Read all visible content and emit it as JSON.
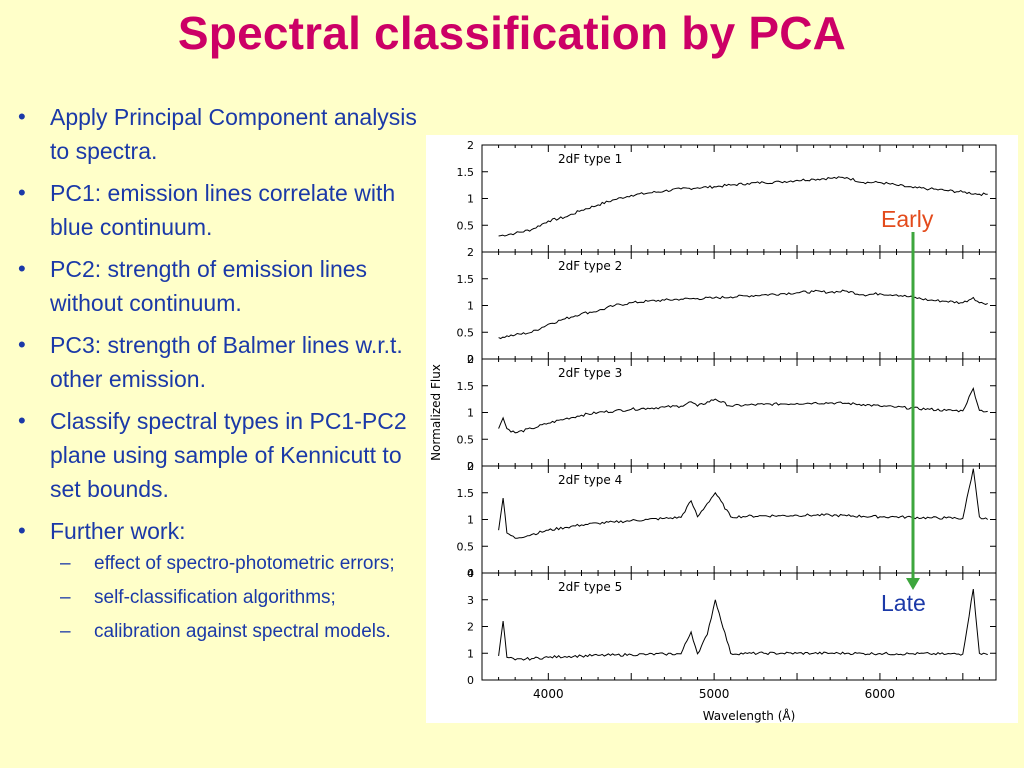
{
  "title": "Spectral classification by PCA",
  "bullets": [
    "Apply Principal Component analysis to spectra.",
    "PC1: emission lines correlate with blue continuum.",
    "PC2: strength of emission lines without continuum.",
    "PC3: strength of Balmer lines w.r.t. other emission.",
    "Classify spectral types in PC1-PC2 plane using sample of Kennicutt to set bounds.",
    "Further work:"
  ],
  "sub_bullets": [
    "effect of spectro-photometric errors;",
    "self-classification algorithms;",
    "calibration against   spectral models."
  ],
  "labels": {
    "early": "Early",
    "late": "Late"
  },
  "colors": {
    "title": "#CC0066",
    "text": "#1B39A8",
    "early": "#E34A1B",
    "arrow": "#3DA63D",
    "background": "#FFFFC9"
  },
  "chart_data": {
    "type": "line",
    "xlabel": "Wavelength (Å)",
    "ylabel": "Normalized Flux",
    "xlim": [
      3600,
      6700
    ],
    "x_ticks": [
      4000,
      5000,
      6000
    ],
    "panels": [
      {
        "name": "2dF type 1",
        "ylim": [
          0,
          2
        ],
        "y_ticks": [
          0,
          0.5,
          1,
          1.5,
          2
        ],
        "y_tick_labels": [
          "",
          "0.5",
          "1",
          "1.5",
          "2"
        ],
        "series": [
          {
            "x": [
              3700,
              3800,
              3900,
              4000,
              4100,
              4200,
              4300,
              4400,
              4500,
              4600,
              4700,
              4800,
              4900,
              5000,
              5100,
              5200,
              5300,
              5400,
              5500,
              5600,
              5700,
              5800,
              5900,
              6000,
              6100,
              6200,
              6300,
              6400,
              6500,
              6600,
              6650
            ],
            "values": [
              0.3,
              0.35,
              0.42,
              0.58,
              0.65,
              0.78,
              0.88,
              0.98,
              1.06,
              1.1,
              1.14,
              1.18,
              1.2,
              1.22,
              1.25,
              1.28,
              1.3,
              1.31,
              1.34,
              1.36,
              1.38,
              1.39,
              1.3,
              1.3,
              1.25,
              1.2,
              1.18,
              1.15,
              1.12,
              1.08,
              1.08
            ]
          }
        ]
      },
      {
        "name": "2dF type 2",
        "ylim": [
          0,
          2
        ],
        "y_ticks": [
          0,
          0.5,
          1,
          1.5,
          2
        ],
        "y_tick_labels": [
          "0",
          "0.5",
          "1",
          "1.5",
          "2"
        ],
        "series": [
          {
            "x": [
              3700,
              3800,
              3900,
              4000,
              4100,
              4200,
              4300,
              4400,
              4500,
              4600,
              4700,
              4800,
              4900,
              5000,
              5100,
              5200,
              5300,
              5400,
              5500,
              5600,
              5700,
              5800,
              5900,
              6000,
              6100,
              6200,
              6300,
              6400,
              6500,
              6563,
              6600,
              6650
            ],
            "values": [
              0.4,
              0.45,
              0.5,
              0.65,
              0.75,
              0.85,
              0.9,
              1.0,
              1.05,
              1.08,
              1.1,
              1.12,
              1.13,
              1.14,
              1.16,
              1.18,
              1.2,
              1.22,
              1.24,
              1.26,
              1.25,
              1.27,
              1.2,
              1.22,
              1.2,
              1.15,
              1.1,
              1.08,
              1.05,
              1.15,
              1.05,
              1.04
            ]
          }
        ]
      },
      {
        "name": "2dF type 3",
        "ylim": [
          0,
          2
        ],
        "y_ticks": [
          0,
          0.5,
          1,
          1.5,
          2
        ],
        "y_tick_labels": [
          "0",
          "0.5",
          "1",
          "1.5",
          "2"
        ],
        "series": [
          {
            "x": [
              3700,
              3727,
              3750,
              3800,
              3900,
              4000,
              4100,
              4200,
              4300,
              4400,
              4500,
              4600,
              4700,
              4800,
              4861,
              4900,
              5007,
              5100,
              5200,
              5300,
              5400,
              5500,
              5600,
              5700,
              5800,
              5900,
              6000,
              6100,
              6200,
              6300,
              6400,
              6500,
              6563,
              6600,
              6650
            ],
            "values": [
              0.7,
              0.9,
              0.7,
              0.62,
              0.7,
              0.8,
              0.88,
              0.95,
              1.0,
              1.03,
              1.06,
              1.08,
              1.1,
              1.12,
              1.2,
              1.12,
              1.25,
              1.12,
              1.14,
              1.15,
              1.16,
              1.17,
              1.18,
              1.18,
              1.17,
              1.15,
              1.12,
              1.1,
              1.08,
              1.06,
              1.04,
              1.03,
              1.45,
              1.04,
              1.02
            ]
          }
        ]
      },
      {
        "name": "2dF type 4",
        "ylim": [
          0,
          2
        ],
        "y_ticks": [
          0,
          0.5,
          1,
          1.5,
          2
        ],
        "y_tick_labels": [
          "0",
          "0.5",
          "1",
          "1.5",
          "2"
        ],
        "series": [
          {
            "x": [
              3700,
              3727,
              3750,
              3800,
              3900,
              4000,
              4100,
              4200,
              4300,
              4400,
              4500,
              4600,
              4700,
              4800,
              4861,
              4900,
              4959,
              5007,
              5100,
              5200,
              5300,
              5400,
              5500,
              5600,
              5700,
              5800,
              5900,
              6000,
              6100,
              6200,
              6300,
              6400,
              6500,
              6563,
              6600,
              6650
            ],
            "values": [
              0.8,
              1.4,
              0.75,
              0.65,
              0.72,
              0.8,
              0.85,
              0.9,
              0.93,
              0.95,
              0.98,
              1.0,
              1.02,
              1.04,
              1.35,
              1.05,
              1.3,
              1.5,
              1.05,
              1.06,
              1.07,
              1.07,
              1.08,
              1.08,
              1.08,
              1.07,
              1.06,
              1.05,
              1.05,
              1.04,
              1.03,
              1.03,
              1.02,
              1.95,
              1.05,
              1.0
            ]
          }
        ]
      },
      {
        "name": "2dF type 5",
        "ylim": [
          0,
          4
        ],
        "y_ticks": [
          0,
          1,
          2,
          3,
          4
        ],
        "y_tick_labels": [
          "0",
          "1",
          "2",
          "3",
          "4"
        ],
        "series": [
          {
            "x": [
              3700,
              3727,
              3750,
              3800,
              3900,
              4000,
              4100,
              4200,
              4300,
              4400,
              4500,
              4600,
              4700,
              4800,
              4861,
              4900,
              4959,
              5007,
              5100,
              5200,
              5300,
              5400,
              5500,
              5600,
              5700,
              5800,
              5900,
              6000,
              6100,
              6200,
              6300,
              6400,
              6500,
              6563,
              6600,
              6650
            ],
            "values": [
              0.9,
              2.2,
              0.85,
              0.75,
              0.8,
              0.85,
              0.88,
              0.9,
              0.92,
              0.93,
              0.95,
              0.96,
              0.97,
              0.98,
              1.8,
              0.98,
              1.7,
              3.0,
              0.99,
              0.99,
              1.0,
              1.0,
              1.0,
              1.0,
              1.0,
              1.0,
              0.99,
              0.99,
              0.98,
              0.98,
              0.98,
              0.97,
              0.97,
              3.4,
              1.0,
              0.95
            ]
          }
        ]
      }
    ],
    "annotations": [
      "Early",
      "Late"
    ]
  }
}
